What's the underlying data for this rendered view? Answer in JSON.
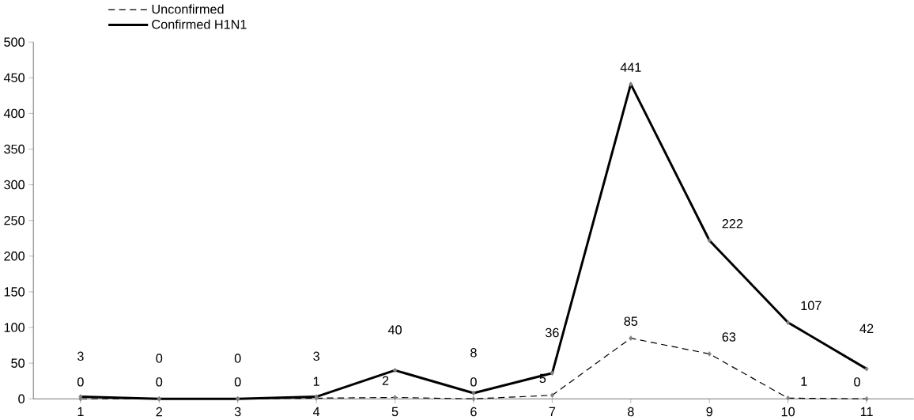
{
  "chart_data": {
    "type": "line",
    "categories": [
      "1",
      "2",
      "3",
      "4",
      "5",
      "6",
      "7",
      "8",
      "9",
      "10",
      "11"
    ],
    "series": [
      {
        "name": "Unconfirmed",
        "color": "#000000",
        "line_style": "dashed",
        "values": [
          0,
          0,
          0,
          1,
          2,
          0,
          5,
          85,
          63,
          1,
          0
        ]
      },
      {
        "name": "Confirmed H1N1",
        "color": "#000000",
        "line_style": "solid",
        "values": [
          3,
          0,
          0,
          3,
          40,
          8,
          36,
          441,
          222,
          107,
          42
        ]
      }
    ],
    "ylim": [
      0,
      500
    ],
    "yticks": [
      0,
      50,
      100,
      150,
      200,
      250,
      300,
      350,
      400,
      450,
      500
    ],
    "data_labels": true,
    "marker": "diamond",
    "legend": "top left",
    "grid": false
  }
}
